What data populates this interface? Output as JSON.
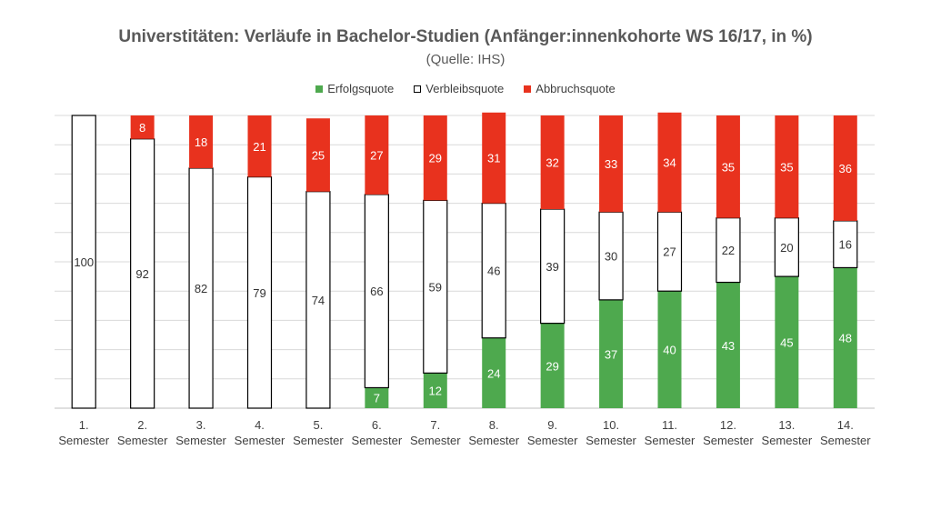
{
  "chart_data": {
    "type": "bar",
    "stacked": true,
    "title": "Universtitäten: Verläufe in Bachelor-Studien (Anfänger:innenkohorte WS 16/17, in %)",
    "subtitle": "(Quelle: IHS)",
    "categories": [
      "1. Semester",
      "2. Semester",
      "3. Semester",
      "4. Semester",
      "5. Semester",
      "6. Semester",
      "7. Semester",
      "8. Semester",
      "9. Semester",
      "10. Semester",
      "11. Semester",
      "12. Semester",
      "13. Semester",
      "14. Semester"
    ],
    "series": [
      {
        "name": "Erfolgsquote",
        "color": "#4EA94E",
        "values": [
          0,
          0,
          0,
          0,
          0,
          7,
          12,
          24,
          29,
          37,
          40,
          43,
          45,
          48
        ]
      },
      {
        "name": "Verbleibsquote",
        "color": "#FFFFFF",
        "values": [
          100,
          92,
          82,
          79,
          74,
          66,
          59,
          46,
          39,
          30,
          27,
          22,
          20,
          16
        ]
      },
      {
        "name": "Abbruchsquote",
        "color": "#E8321E",
        "values": [
          0,
          8,
          18,
          21,
          25,
          27,
          29,
          31,
          32,
          33,
          34,
          35,
          35,
          36
        ]
      }
    ],
    "ylim": [
      0,
      100
    ],
    "legend_position": "top",
    "grid": true
  }
}
